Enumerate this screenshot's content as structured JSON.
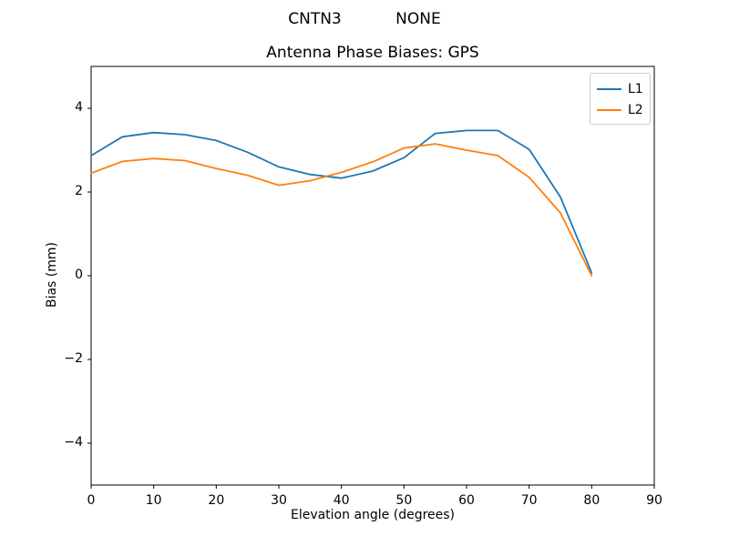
{
  "figure": {
    "suptitle": "CNTN3           NONE",
    "background_color": "#ffffff"
  },
  "chart_data": {
    "type": "line",
    "title": "Antenna Phase Biases: GPS",
    "xlabel": "Elevation angle (degrees)",
    "ylabel": "Bias (mm)",
    "xlim": [
      0,
      90
    ],
    "ylim": [
      -5,
      5
    ],
    "xticks": [
      0,
      10,
      20,
      30,
      40,
      50,
      60,
      70,
      80,
      90
    ],
    "yticks": [
      -4,
      -2,
      0,
      2,
      4
    ],
    "ytick_labels": [
      "−4",
      "−2",
      "0",
      "2",
      "4"
    ],
    "grid": false,
    "legend_position": "upper right",
    "x": [
      0,
      5,
      10,
      15,
      20,
      25,
      30,
      35,
      40,
      45,
      50,
      55,
      60,
      65,
      70,
      75,
      80
    ],
    "series": [
      {
        "name": "L1",
        "color": "#1f77b4",
        "values": [
          2.87,
          3.32,
          3.42,
          3.37,
          3.23,
          2.95,
          2.6,
          2.42,
          2.33,
          2.5,
          2.82,
          3.4,
          3.47,
          3.47,
          3.02,
          1.88,
          0.07
        ]
      },
      {
        "name": "L2",
        "color": "#ff7f0e",
        "values": [
          2.45,
          2.73,
          2.8,
          2.75,
          2.56,
          2.4,
          2.16,
          2.27,
          2.47,
          2.72,
          3.05,
          3.15,
          3.0,
          2.87,
          2.35,
          1.5,
          0.0
        ]
      }
    ],
    "axes_color": "#000000",
    "tick_color": "#000000"
  }
}
